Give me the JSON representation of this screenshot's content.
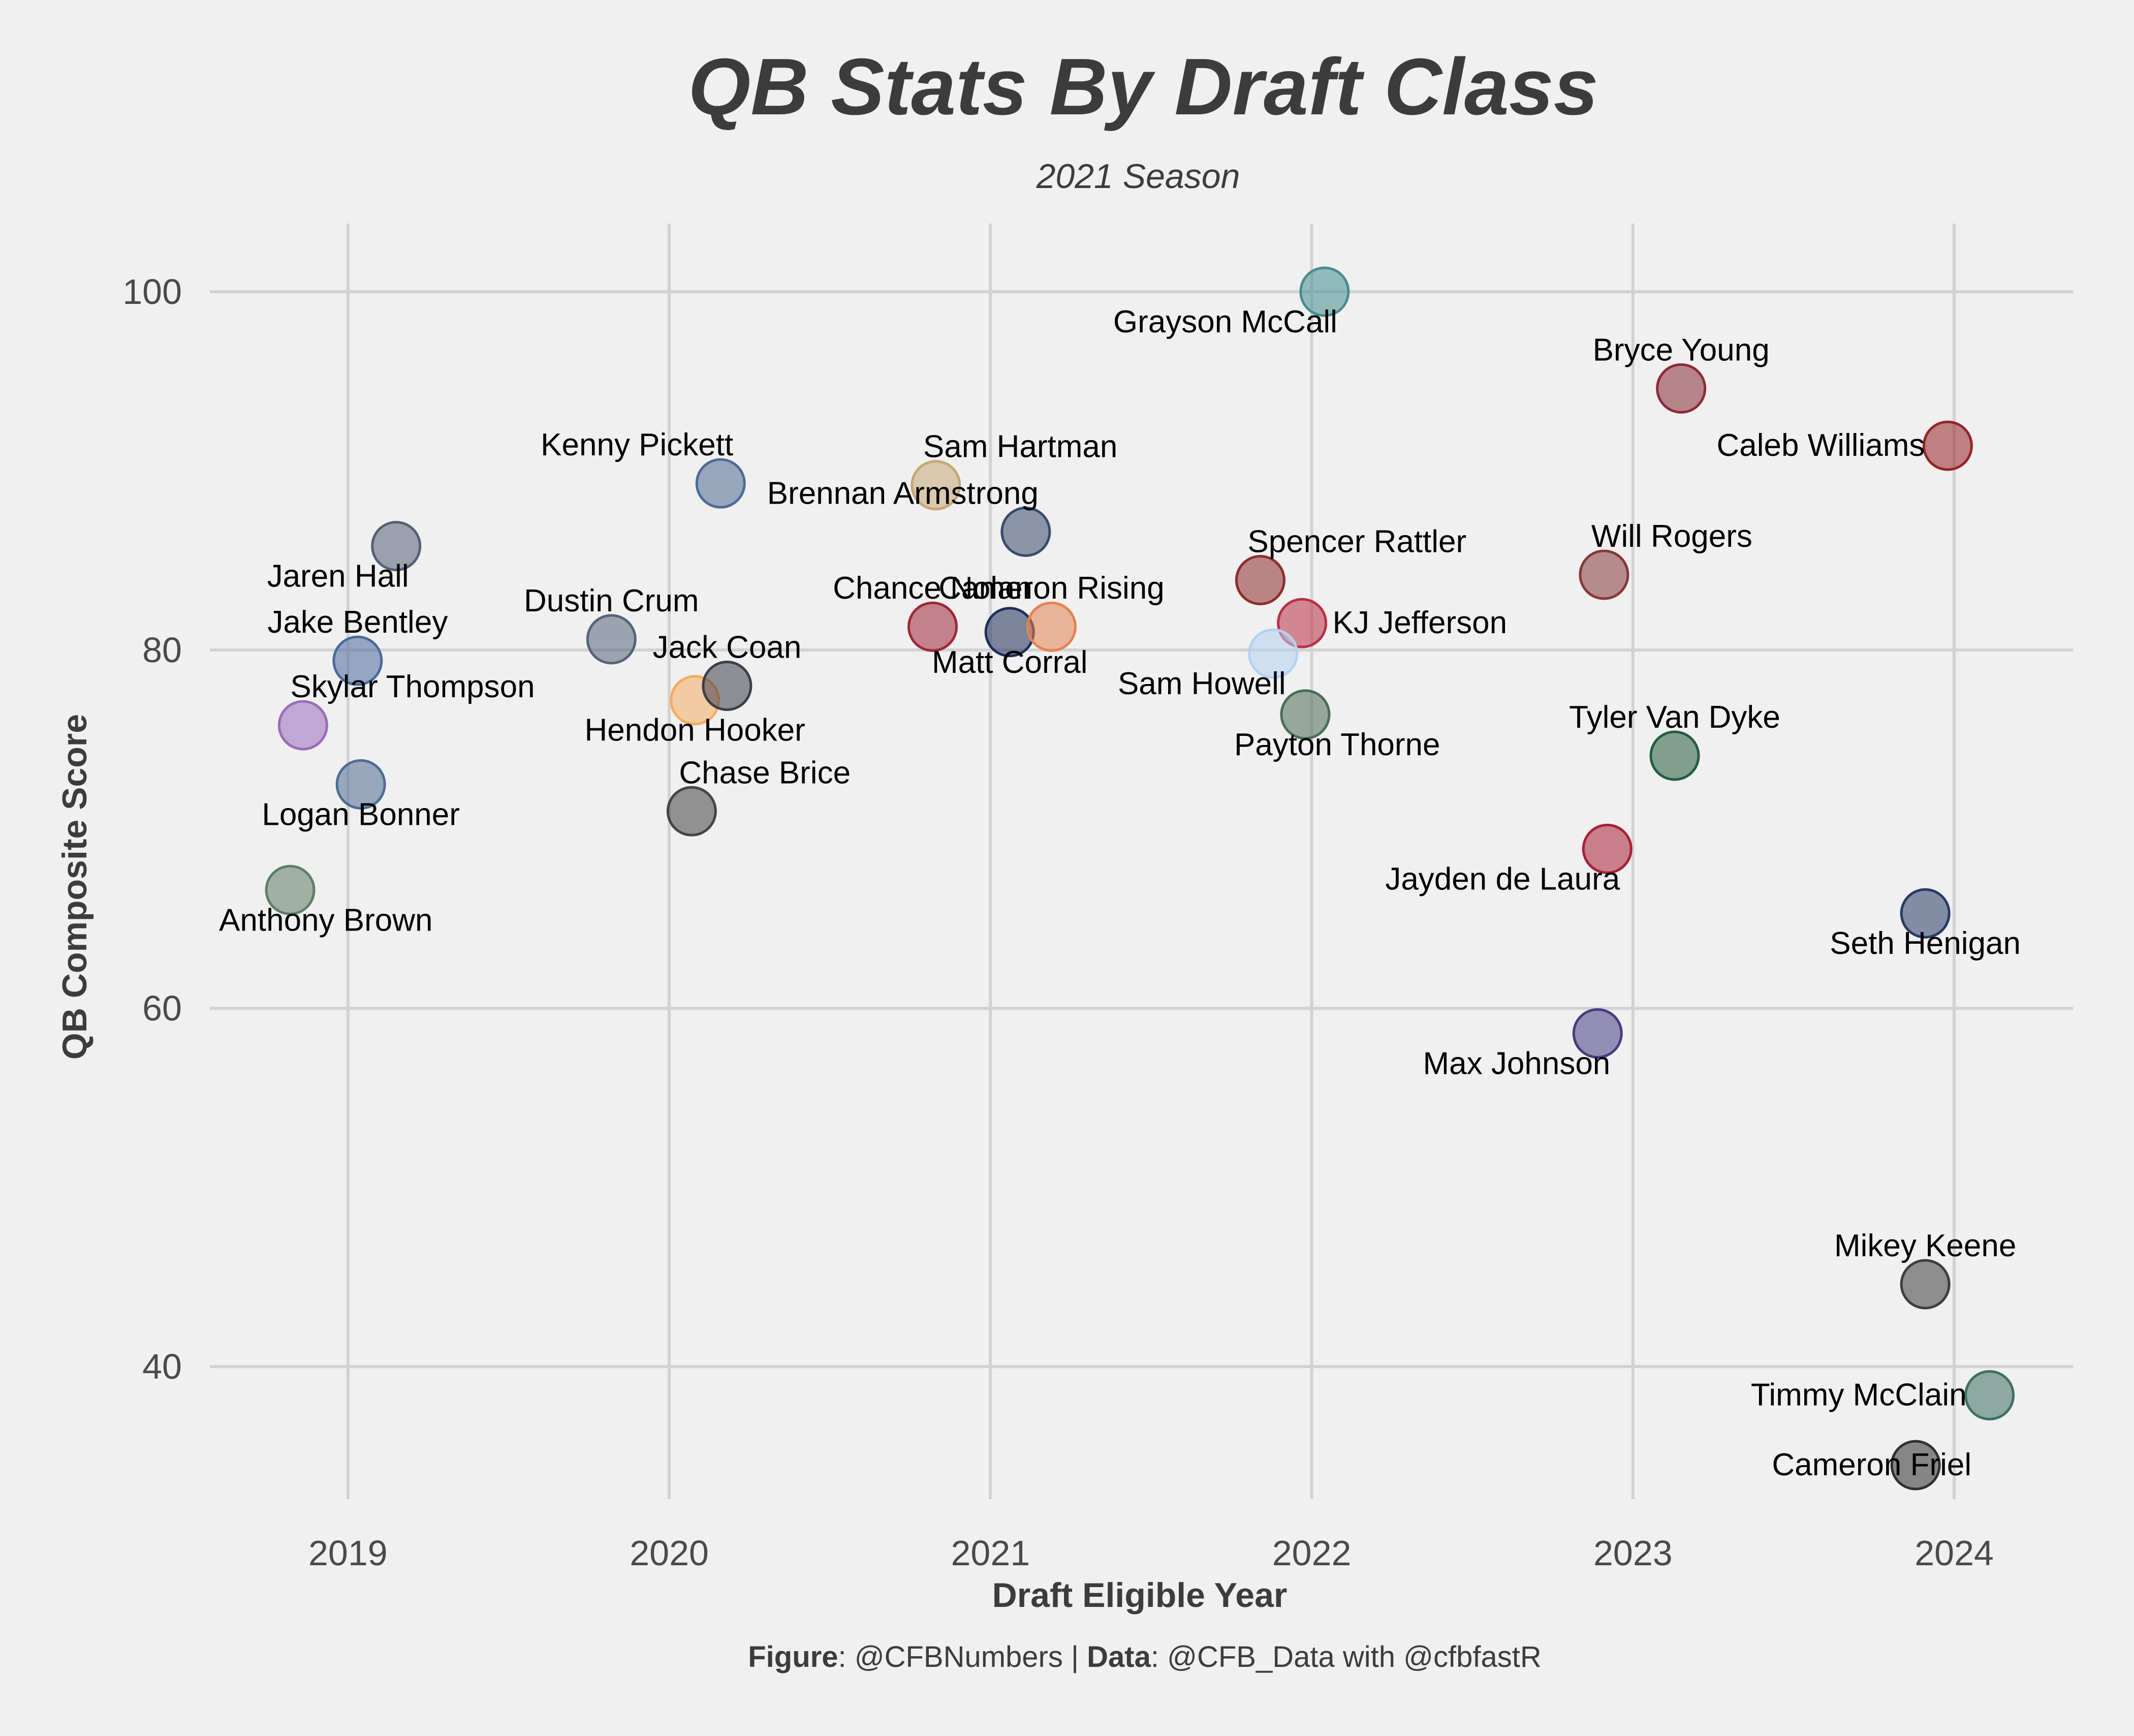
{
  "chart_data": {
    "type": "scatter",
    "title": "QB Stats By Draft Class",
    "subtitle": "2021 Season",
    "xlabel": "Draft Eligible Year",
    "ylabel": "QB Composite Score",
    "xlim": [
      2018.57,
      2024.37
    ],
    "ylim": [
      32.6,
      103.8
    ],
    "x_ticks": [
      2019,
      2020,
      2021,
      2022,
      2023,
      2024
    ],
    "y_ticks": [
      40,
      60,
      80,
      100
    ],
    "grid": true,
    "legend": "none",
    "caption": {
      "figure_label": "Figure",
      "figure_value": ": @CFBNumbers | ",
      "data_label": "Data",
      "data_value": ": @CFB_Data with @cfbfastR"
    },
    "points": [
      {
        "name": "Jaren Hall",
        "x": 2019.15,
        "y": 85.8,
        "color": "#566074",
        "label_pos": "below-left"
      },
      {
        "name": "Jake Bentley",
        "x": 2019.03,
        "y": 79.4,
        "color": "#4a6a9c",
        "label_pos": "above"
      },
      {
        "name": "Skylar Thompson",
        "x": 2018.86,
        "y": 75.8,
        "color": "#9a6cbc",
        "label_pos": "above-right"
      },
      {
        "name": "Logan Bonner",
        "x": 2019.04,
        "y": 72.5,
        "color": "#4f6c94",
        "label_pos": "below"
      },
      {
        "name": "Anthony Brown",
        "x": 2018.82,
        "y": 66.6,
        "color": "#5e7e66",
        "label_pos": "below-right"
      },
      {
        "name": "Kenny Pickett",
        "x": 2020.16,
        "y": 89.3,
        "color": "#4d6b96",
        "label_pos": "above-left"
      },
      {
        "name": "Dustin Crum",
        "x": 2019.82,
        "y": 80.6,
        "color": "#546478",
        "label_pos": "above"
      },
      {
        "name": "Hendon Hooker",
        "x": 2020.08,
        "y": 77.2,
        "color": "#f3ad60",
        "label_pos": "below"
      },
      {
        "name": "Jack Coan",
        "x": 2020.18,
        "y": 78.0,
        "color": "#3c3e48",
        "label_pos": "above"
      },
      {
        "name": "Chase Brice",
        "x": 2020.07,
        "y": 71.0,
        "color": "#444444",
        "label_pos": "above-right"
      },
      {
        "name": "Sam Hartman",
        "x": 2020.83,
        "y": 89.2,
        "color": "#c6a876",
        "label_pos": "above-right"
      },
      {
        "name": "Brennan Armstrong",
        "x": 2021.11,
        "y": 86.6,
        "color": "#3a4a6e",
        "label_pos": "above-left"
      },
      {
        "name": "Chance Nolan",
        "x": 2020.82,
        "y": 81.3,
        "color": "#9e2838",
        "label_pos": "above"
      },
      {
        "name": "Matt Corral",
        "x": 2021.06,
        "y": 81.0,
        "color": "#1e2e5a",
        "label_pos": "below"
      },
      {
        "name": "Cameron Rising",
        "x": 2021.19,
        "y": 81.3,
        "color": "#e48250",
        "label_pos": "above"
      },
      {
        "name": "Grayson McCall",
        "x": 2022.04,
        "y": 100.0,
        "color": "#468e90",
        "label_pos": "below-left"
      },
      {
        "name": "Spencer Rattler",
        "x": 2021.84,
        "y": 83.9,
        "color": "#8e2c2c",
        "label_pos": "above-right"
      },
      {
        "name": "KJ Jefferson",
        "x": 2021.97,
        "y": 81.5,
        "color": "#b83046",
        "label_pos": "right"
      },
      {
        "name": "Sam Howell",
        "x": 2021.88,
        "y": 79.8,
        "color": "#b4d2f0",
        "label_pos": "below-left"
      },
      {
        "name": "Payton Thorne",
        "x": 2021.98,
        "y": 76.4,
        "color": "#4a6e56",
        "label_pos": "below-right"
      },
      {
        "name": "Bryce Young",
        "x": 2023.15,
        "y": 94.6,
        "color": "#8a2c38",
        "label_pos": "above"
      },
      {
        "name": "Will Rogers",
        "x": 2022.91,
        "y": 84.2,
        "color": "#863838",
        "label_pos": "above-right"
      },
      {
        "name": "Tyler Van Dyke",
        "x": 2023.13,
        "y": 74.1,
        "color": "#255d3e",
        "label_pos": "above"
      },
      {
        "name": "Jayden de Laura",
        "x": 2022.92,
        "y": 68.9,
        "color": "#a82038",
        "label_pos": "below-left"
      },
      {
        "name": "Max Johnson",
        "x": 2022.89,
        "y": 58.6,
        "color": "#463c80",
        "label_pos": "below-left"
      },
      {
        "name": "Caleb Williams",
        "x": 2023.98,
        "y": 91.4,
        "color": "#962424",
        "label_pos": "left"
      },
      {
        "name": "Seth Henigan",
        "x": 2023.91,
        "y": 65.3,
        "color": "#283a66",
        "label_pos": "below"
      },
      {
        "name": "Mikey Keene",
        "x": 2023.91,
        "y": 44.6,
        "color": "#3e3e3e",
        "label_pos": "above"
      },
      {
        "name": "Timmy McClain",
        "x": 2024.11,
        "y": 38.4,
        "color": "#3e7060",
        "label_pos": "left"
      },
      {
        "name": "Cameron Friel",
        "x": 2023.88,
        "y": 34.5,
        "color": "#303030",
        "label_pos": "right-anchored-left"
      }
    ]
  }
}
